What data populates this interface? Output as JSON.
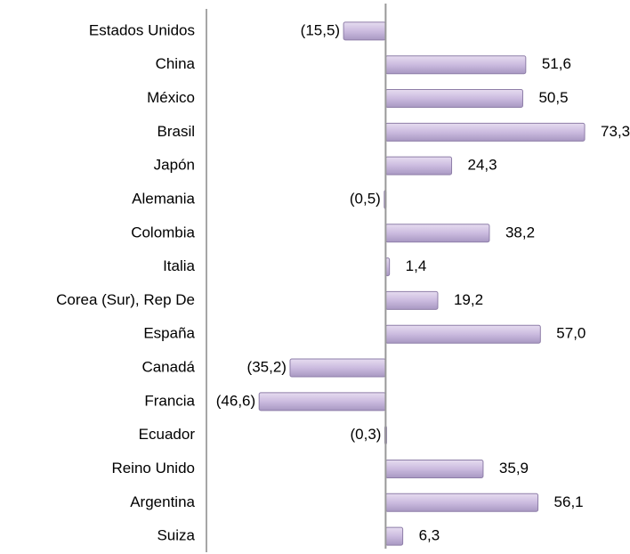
{
  "chart_data": {
    "type": "bar",
    "orientation": "horizontal",
    "categories": [
      "Estados Unidos",
      "China",
      "México",
      "Brasil",
      "Japón",
      "Alemania",
      "Colombia",
      "Italia",
      "Corea (Sur), Rep De",
      "España",
      "Canadá",
      "Francia",
      "Ecuador",
      "Reino Unido",
      "Argentina",
      "Suiza"
    ],
    "values": [
      -15.5,
      51.6,
      50.5,
      73.3,
      24.3,
      -0.5,
      38.2,
      1.4,
      19.2,
      57.0,
      -35.2,
      -46.6,
      -0.3,
      35.9,
      56.1,
      6.3
    ],
    "value_labels": [
      "(15,5)",
      "51,6",
      "50,5",
      "73,3",
      "24,3",
      "(0,5)",
      "38,2",
      "1,4",
      "19,2",
      "57,0",
      "(35,2)",
      "(46,6)",
      "(0,3)",
      "35,9",
      "56,1",
      "6,3"
    ],
    "color": "#cbbbdf",
    "xlim": [
      -66,
      90
    ]
  }
}
